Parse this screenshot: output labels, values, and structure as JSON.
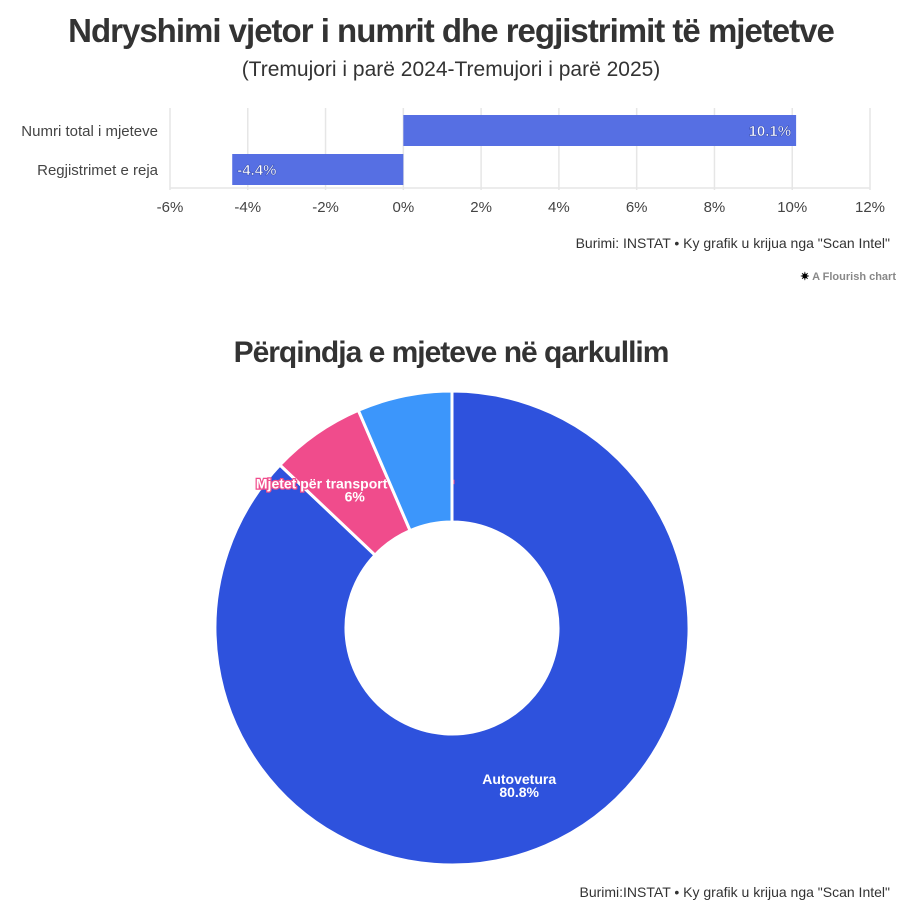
{
  "chart_data": [
    {
      "type": "bar",
      "orientation": "horizontal",
      "title": "Ndryshimi vjetor i numrit dhe regjistrimit të mjetetve",
      "subtitle": "(Tremujori i parë 2024-Tremujori i parë 2025)",
      "categories": [
        "Numri total i mjeteve",
        "Regjistrimet e reja"
      ],
      "values": [
        10.1,
        -4.4
      ],
      "value_labels": [
        "10.1%",
        "-4.4%"
      ],
      "xlim": [
        -6,
        12
      ],
      "xticks": [
        -6,
        -4,
        -2,
        0,
        2,
        4,
        6,
        8,
        10,
        12
      ],
      "xtick_labels": [
        "-6%",
        "-4%",
        "-2%",
        "0%",
        "2%",
        "4%",
        "6%",
        "8%",
        "10%",
        "12%"
      ],
      "color": "#566fe3",
      "grid": true,
      "source": "Burimi: INSTAT • Ky grafik u krijua nga \"Scan Intel\""
    },
    {
      "type": "pie",
      "donut": true,
      "title": "Përqindja e mjeteve në qarkullim",
      "slices": [
        {
          "label": "Autovetura",
          "value": 80.8,
          "value_label": "80.8%",
          "color": "#2e52dd"
        },
        {
          "label": "Mjetet për transport të përzier",
          "value": 6,
          "value_label": "6%",
          "color": "#f04c8c"
        },
        {
          "label": "",
          "value": 6,
          "value_label": "",
          "color": "#3c96fb"
        }
      ],
      "source": "Burimi:INSTAT • Ky grafik u krijua nga \"Scan Intel\""
    }
  ],
  "flourish": "A Flourish chart"
}
